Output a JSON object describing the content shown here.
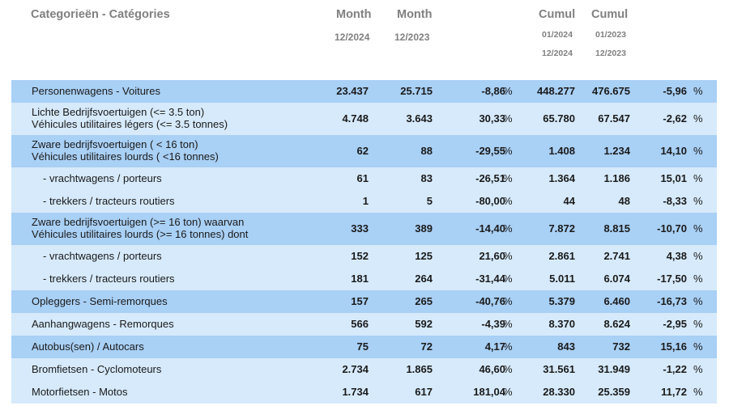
{
  "header": {
    "title": "Categorieën - Catégories",
    "col1_title": "Month",
    "col1_period": "12/2024",
    "col2_title": "Month",
    "col2_period": "12/2023",
    "col3_title": "Cumul",
    "col3_from": "01/2024",
    "col3_to": "12/2024",
    "col4_title": "Cumul",
    "col4_from": "01/2023",
    "col4_to": "12/2023"
  },
  "colors": {
    "dark_row": "#a9d0f5",
    "light_row": "#d6eafb"
  },
  "rows": [
    {
      "label": [
        "Personenwagens - Voitures"
      ],
      "month_2024": "23.437",
      "month_2023": "25.715",
      "month_change": "-8,86",
      "month_unit": "%",
      "cumul_2024": "448.277",
      "cumul_2023": "476.675",
      "cumul_change": "-5,96",
      "cumul_unit": "%",
      "shade": "dark"
    },
    {
      "label": [
        "Lichte Bedrijfsvoertuigen (<= 3.5 ton)",
        "Véhicules utilitaires légers (<= 3.5 tonnes)"
      ],
      "month_2024": "4.748",
      "month_2023": "3.643",
      "month_change": "30,33",
      "month_unit": "%",
      "cumul_2024": "65.780",
      "cumul_2023": "67.547",
      "cumul_change": "-2,62",
      "cumul_unit": "%",
      "shade": "light"
    },
    {
      "label": [
        "Zware bedrijfsvoertuigen ( < 16 ton)",
        "Véhicules utilitaires lourds ( <16 tonnes)"
      ],
      "month_2024": "62",
      "month_2023": "88",
      "month_change": "-29,55",
      "month_unit": "%",
      "cumul_2024": "1.408",
      "cumul_2023": "1.234",
      "cumul_change": "14,10",
      "cumul_unit": "%",
      "shade": "dark"
    },
    {
      "label": [
        "- vrachtwagens / porteurs"
      ],
      "month_2024": "61",
      "month_2023": "83",
      "month_change": "-26,51",
      "month_unit": "%",
      "cumul_2024": "1.364",
      "cumul_2023": "1.186",
      "cumul_change": "15,01",
      "cumul_unit": "%",
      "shade": "light",
      "sub": true
    },
    {
      "label": [
        "- trekkers / tracteurs routiers"
      ],
      "month_2024": "1",
      "month_2023": "5",
      "month_change": "-80,00",
      "month_unit": "%",
      "cumul_2024": "44",
      "cumul_2023": "48",
      "cumul_change": "-8,33",
      "cumul_unit": "%",
      "shade": "light",
      "sub": true
    },
    {
      "label": [
        "Zware bedrijfsvoertuigen (>= 16 ton) waarvan",
        "Véhicules utilitaires lourds (>= 16 tonnes) dont"
      ],
      "month_2024": "333",
      "month_2023": "389",
      "month_change": "-14,40",
      "month_unit": "%",
      "cumul_2024": "7.872",
      "cumul_2023": "8.815",
      "cumul_change": "-10,70",
      "cumul_unit": "%",
      "shade": "dark"
    },
    {
      "label": [
        "- vrachtwagens / porteurs"
      ],
      "month_2024": "152",
      "month_2023": "125",
      "month_change": "21,60",
      "month_unit": "%",
      "cumul_2024": "2.861",
      "cumul_2023": "2.741",
      "cumul_change": "4,38",
      "cumul_unit": "%",
      "shade": "light",
      "sub": true
    },
    {
      "label": [
        "- trekkers / tracteurs routiers"
      ],
      "month_2024": "181",
      "month_2023": "264",
      "month_change": "-31,44",
      "month_unit": "%",
      "cumul_2024": "5.011",
      "cumul_2023": "6.074",
      "cumul_change": "-17,50",
      "cumul_unit": "%",
      "shade": "light",
      "sub": true
    },
    {
      "label": [
        "Opleggers - Semi-remorques"
      ],
      "month_2024": "157",
      "month_2023": "265",
      "month_change": "-40,76",
      "month_unit": "%",
      "cumul_2024": "5.379",
      "cumul_2023": "6.460",
      "cumul_change": "-16,73",
      "cumul_unit": "%",
      "shade": "dark"
    },
    {
      "label": [
        "Aanhangwagens - Remorques"
      ],
      "month_2024": "566",
      "month_2023": "592",
      "month_change": "-4,39",
      "month_unit": "%",
      "cumul_2024": "8.370",
      "cumul_2023": "8.624",
      "cumul_change": "-2,95",
      "cumul_unit": "%",
      "shade": "light"
    },
    {
      "label": [
        "Autobus(sen) / Autocars"
      ],
      "month_2024": "75",
      "month_2023": "72",
      "month_change": "4,17",
      "month_unit": "%",
      "cumul_2024": "843",
      "cumul_2023": "732",
      "cumul_change": "15,16",
      "cumul_unit": "%",
      "shade": "dark"
    },
    {
      "label": [
        "Bromfietsen - Cyclomoteurs"
      ],
      "month_2024": "2.734",
      "month_2023": "1.865",
      "month_change": "46,60",
      "month_unit": "%",
      "cumul_2024": "31.561",
      "cumul_2023": "31.949",
      "cumul_change": "-1,22",
      "cumul_unit": "%",
      "shade": "light"
    },
    {
      "label": [
        "Motorfietsen - Motos"
      ],
      "month_2024": "1.734",
      "month_2023": "617",
      "month_change": "181,04",
      "month_unit": "%",
      "cumul_2024": "28.330",
      "cumul_2023": "25.359",
      "cumul_change": "11,72",
      "cumul_unit": "%",
      "shade": "light"
    }
  ]
}
